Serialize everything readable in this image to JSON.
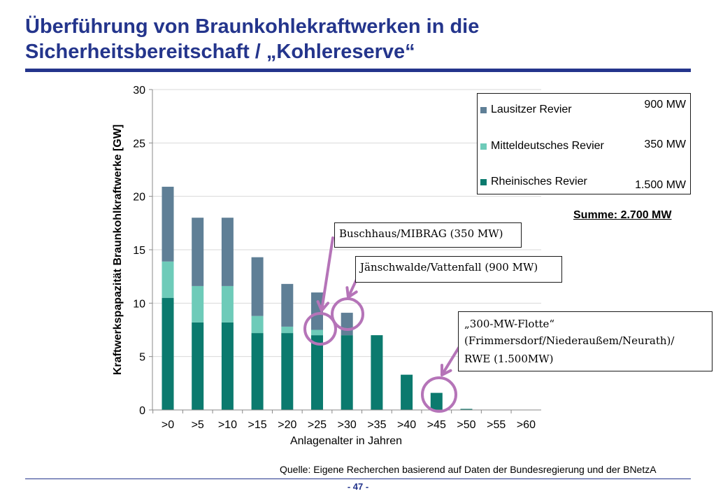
{
  "slide": {
    "title_line1": "Überführung von Braunkohlekraftwerken in die",
    "title_line2": "Sicherheitsbereitschaft / „Kohlereserve“",
    "source": "Quelle: Eigene Recherchen basierend auf Daten der Bundesregierung und der BNetzA",
    "page_number": "- 47 -"
  },
  "legend_box": {
    "items": [
      {
        "label": "Lausitzer Revier",
        "mw": "900 MW",
        "color": "#5f7f96"
      },
      {
        "label": "Mitteldeutsches Revier",
        "mw": "350 MW",
        "color": "#6ecbb9"
      },
      {
        "label": "Rheinisches Revier",
        "mw": "1.500 MW",
        "color": "#0b7a6e"
      }
    ],
    "summe": "Summe: 2.700 MW"
  },
  "callouts": {
    "buschhaus": "Buschhaus/MIBRAG (350 MW)",
    "jaenschwalde": "Jänschwalde/Vattenfall (900 MW)",
    "flotte_line1": "„300-MW-Flotte“",
    "flotte_line2": "(Frimmersdorf/Niederaußem/Neurath)/",
    "flotte_line3": "RWE (1.500MW)"
  },
  "chart_data": {
    "type": "bar",
    "stacked": true,
    "xlabel": "Anlagenalter in Jahren",
    "ylabel": "Kraftwerkspapazität Braunkohlkraftwerke [GW]",
    "ylim": [
      0,
      30
    ],
    "yticks": [
      0,
      5,
      10,
      15,
      20,
      25,
      30
    ],
    "grid": true,
    "legend_position": "top-right",
    "categories": [
      ">0",
      ">5",
      ">10",
      ">15",
      ">20",
      ">25",
      ">30",
      ">35",
      ">40",
      ">45",
      ">50",
      ">55",
      ">60"
    ],
    "series": [
      {
        "name": "Rheinisches Revier",
        "color": "#0b7a6e",
        "values": [
          10.5,
          8.2,
          8.2,
          7.2,
          7.2,
          7.0,
          7.0,
          7.0,
          3.3,
          1.6,
          0.1,
          0,
          0
        ]
      },
      {
        "name": "Mitteldeutsches Revier",
        "color": "#6ecbb9",
        "values": [
          3.4,
          3.4,
          3.4,
          1.6,
          0.6,
          0.5,
          0,
          0,
          0,
          0,
          0,
          0,
          0
        ]
      },
      {
        "name": "Lausitzer Revier",
        "color": "#5f7f96",
        "values": [
          7.0,
          6.4,
          6.4,
          5.5,
          4.0,
          3.5,
          2.1,
          0,
          0,
          0,
          0,
          0,
          0
        ]
      }
    ]
  }
}
